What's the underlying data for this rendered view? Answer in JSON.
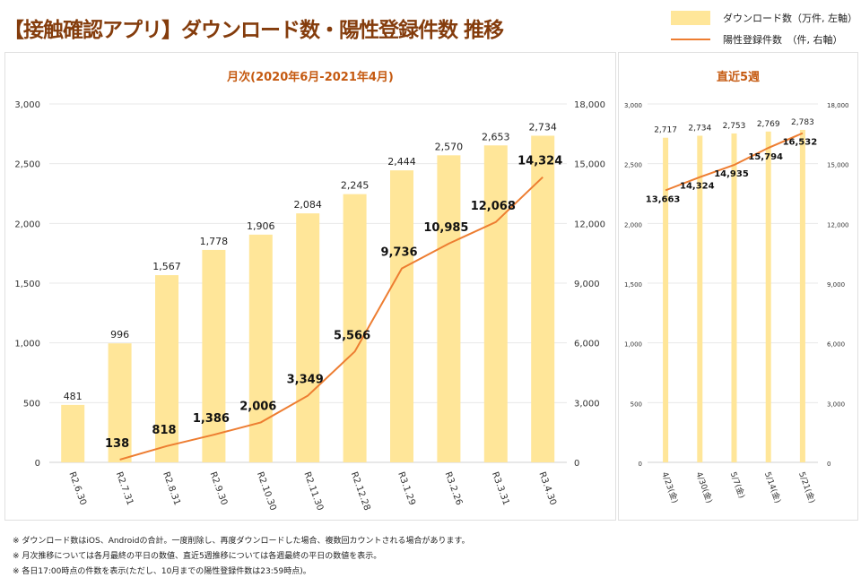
{
  "title": "【接触確認アプリ】ダウンロード数・陽性登録件数 推移",
  "legend": {
    "bar": "ダウンロード数（万件, 左軸）",
    "line": "陽性登録件数　（件, 右軸）"
  },
  "colors": {
    "bar": "#ffe699",
    "line": "#ed7d31",
    "title": "#843c0c",
    "panel_title": "#c55a11"
  },
  "chart_data": [
    {
      "type": "bar+line",
      "title": "月次(2020年6月-2021年4月)",
      "categories": [
        "R2.6.30",
        "R2.7.31",
        "R2.8.31",
        "R2.9.30",
        "R2.10.30",
        "R2.11.30",
        "R2.12.28",
        "R3.1.29",
        "R3.2.26",
        "R3.3.31",
        "R3.4.30"
      ],
      "series": [
        {
          "name": "ダウンロード数（万件, 左軸）",
          "type": "bar",
          "axis": "left",
          "values": [
            481,
            996,
            1567,
            1778,
            1906,
            2084,
            2245,
            2444,
            2570,
            2653,
            2734
          ]
        },
        {
          "name": "陽性登録件数　（件, 右軸）",
          "type": "line",
          "axis": "right",
          "values": [
            null,
            138,
            818,
            1386,
            2006,
            3349,
            5566,
            9736,
            10985,
            12068,
            14324
          ]
        }
      ],
      "ylim_left": [
        0,
        3000
      ],
      "yticks_left": [
        "0",
        "500",
        "1,000",
        "1,500",
        "2,000",
        "2,500",
        "3,000"
      ],
      "ylim_right": [
        0,
        18000
      ],
      "yticks_right": [
        "0",
        "3,000",
        "6,000",
        "9,000",
        "12,000",
        "15,000",
        "18,000"
      ],
      "grid": true
    },
    {
      "type": "bar+line",
      "title": "直近5週",
      "categories": [
        "4/23(金)",
        "4/30(金)",
        "5/7(金)",
        "5/14(金)",
        "5/21(金)"
      ],
      "series": [
        {
          "name": "ダウンロード数（万件, 左軸）",
          "type": "bar",
          "axis": "left",
          "values": [
            2717,
            2734,
            2753,
            2769,
            2783
          ]
        },
        {
          "name": "陽性登録件数　（件, 右軸）",
          "type": "line",
          "axis": "right",
          "values": [
            13663,
            14324,
            14935,
            15794,
            16532
          ]
        }
      ],
      "ylim_left": [
        0,
        3000
      ],
      "yticks_left": [
        "0",
        "500",
        "1,000",
        "1,500",
        "2,000",
        "2,500",
        "3,000"
      ],
      "ylim_right": [
        0,
        18000
      ],
      "yticks_right": [
        "0",
        "3,000",
        "6,000",
        "9,000",
        "12,000",
        "15,000",
        "18,000"
      ],
      "grid": true
    }
  ],
  "notes": [
    "※ ダウンロード数はiOS、Androidの合計。一度削除し、再度ダウンロードした場合、複数回カウントされる場合があります。",
    "※ 月次推移については各月最終の平日の数値、直近5週推移については各週最終の平日の数値を表示。",
    "※ 各日17:00時点の件数を表示(ただし、10月までの陽性登録件数は23:59時点)。"
  ]
}
